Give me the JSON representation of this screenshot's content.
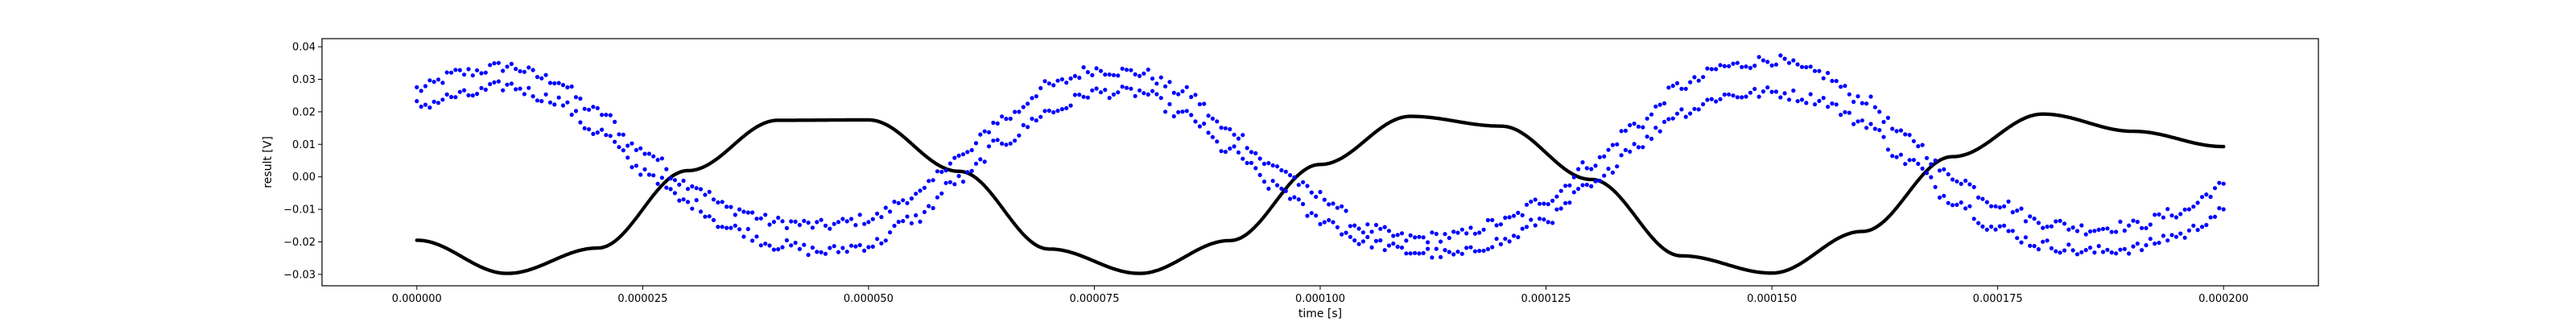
{
  "chart_data": {
    "type": "scatter",
    "xlabel": "time [s]",
    "ylabel": "result [V]",
    "xlim": [
      -1.05e-05,
      0.0002105
    ],
    "ylim": [
      -0.0335,
      0.0425
    ],
    "grid": false,
    "x_ticks": [
      {
        "value": 0.0,
        "label": "0.000000"
      },
      {
        "value": 2.5e-05,
        "label": "0.000025"
      },
      {
        "value": 5e-05,
        "label": "0.000050"
      },
      {
        "value": 7.5e-05,
        "label": "0.000075"
      },
      {
        "value": 0.0001,
        "label": "0.000100"
      },
      {
        "value": 0.000125,
        "label": "0.000125"
      },
      {
        "value": 0.00015,
        "label": "0.000150"
      },
      {
        "value": 0.000175,
        "label": "0.000175"
      },
      {
        "value": 0.0002,
        "label": "0.000200"
      }
    ],
    "y_ticks": [
      {
        "value": -0.03,
        "label": "−0.03"
      },
      {
        "value": -0.02,
        "label": "−0.02"
      },
      {
        "value": -0.01,
        "label": "−0.01"
      },
      {
        "value": 0.0,
        "label": "0.00"
      },
      {
        "value": 0.01,
        "label": "0.01"
      },
      {
        "value": 0.02,
        "label": "0.02"
      },
      {
        "value": 0.03,
        "label": "0.03"
      },
      {
        "value": 0.04,
        "label": "0.04"
      }
    ],
    "series": [
      {
        "color": "#000000",
        "marker": "line-of-dots",
        "x": [
          0.0,
          1e-05,
          2e-05,
          3e-05,
          4e-05,
          5e-05,
          6e-05,
          7e-05,
          8e-05,
          9e-05,
          0.0001,
          0.00011,
          0.00012,
          0.00013,
          0.00014,
          0.00015,
          0.00016,
          0.00017,
          0.00018,
          0.00019,
          0.0002
        ],
        "y": [
          -0.0195,
          -0.0297,
          -0.0219,
          0.0019,
          0.0174,
          0.0175,
          0.0017,
          -0.0222,
          -0.0297,
          -0.0196,
          0.0038,
          0.0186,
          0.0156,
          -0.0008,
          -0.0243,
          -0.0296,
          -0.0168,
          0.0062,
          0.0193,
          0.014,
          0.0093
        ]
      },
      {
        "color": "#0000ff",
        "marker": "dot",
        "x": [
          0.0,
          5e-06,
          1e-05,
          1.5e-05,
          2e-05,
          2.5e-05,
          3e-05,
          3.5e-05,
          4e-05,
          4.5e-05,
          5e-05,
          5.5e-05,
          6e-05,
          6.5e-05,
          7e-05,
          7.5e-05,
          8e-05,
          8.5e-05,
          9e-05,
          9.5e-05,
          0.0001,
          0.000105,
          0.00011,
          0.000115,
          0.00012,
          0.000125,
          0.00013,
          0.000135,
          0.00014,
          0.000145,
          0.00015,
          0.000155,
          0.00016,
          0.000165,
          0.00017,
          0.000175,
          0.00018,
          0.000185,
          0.00019,
          0.000195,
          0.0002
        ],
        "y_upper": [
          0.027,
          0.032,
          0.034,
          0.03,
          0.02,
          0.008,
          -0.002,
          -0.01,
          -0.014,
          -0.015,
          -0.013,
          -0.006,
          0.006,
          0.018,
          0.028,
          0.033,
          0.032,
          0.026,
          0.014,
          0.003,
          -0.006,
          -0.016,
          -0.019,
          -0.018,
          -0.014,
          -0.007,
          0.004,
          0.016,
          0.028,
          0.034,
          0.036,
          0.032,
          0.024,
          0.012,
          0.0,
          -0.008,
          -0.014,
          -0.016,
          -0.015,
          -0.011,
          -0.003
        ],
        "y_lower": [
          0.022,
          0.025,
          0.028,
          0.024,
          0.014,
          0.002,
          -0.008,
          -0.016,
          -0.021,
          -0.023,
          -0.021,
          -0.013,
          -0.001,
          0.011,
          0.02,
          0.026,
          0.026,
          0.019,
          0.008,
          -0.003,
          -0.013,
          -0.02,
          -0.023,
          -0.024,
          -0.02,
          -0.013,
          -0.003,
          0.01,
          0.02,
          0.025,
          0.026,
          0.024,
          0.017,
          0.005,
          -0.007,
          -0.016,
          -0.021,
          -0.023,
          -0.022,
          -0.018,
          -0.011
        ]
      }
    ]
  }
}
